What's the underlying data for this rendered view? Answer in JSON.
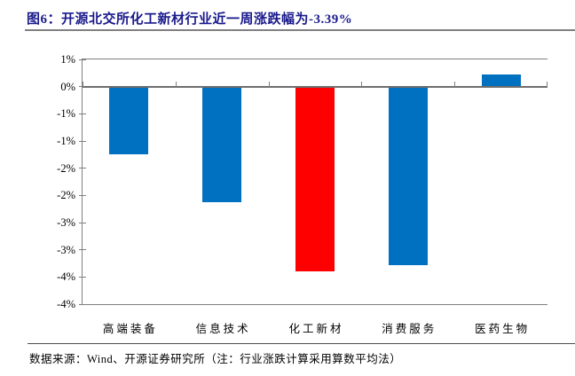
{
  "figure": {
    "title": "图6：开源北交所化工新材行业近一周涨跌幅为-3.39%",
    "source_note": "数据来源：Wind、开源证券研究所（注：行业涨跌计算采用算数平均法）"
  },
  "colors": {
    "title_navy": "#1a1a8c",
    "bar_blue": "#0070C0",
    "bar_red": "#FF0000",
    "axis_gray": "#808080",
    "zero_line_gray": "#6e6e6e"
  },
  "chart_data": {
    "type": "bar",
    "title": "开源北交所化工新材行业近一周涨跌幅为-3.39%",
    "categories": [
      "高端装备",
      "信息技术",
      "化工新材",
      "消费服务",
      "医药生物"
    ],
    "values": [
      -1.25,
      -2.13,
      -3.39,
      -3.28,
      0.23
    ],
    "bar_colors": [
      "#0070C0",
      "#0070C0",
      "#FF0000",
      "#0070C0",
      "#0070C0"
    ],
    "highlight_category": "化工新材",
    "xlabel": "",
    "ylabel": "",
    "ylim": [
      -4.0,
      0.5
    ],
    "ytick_values": [
      0.5,
      0,
      -0.5,
      -1,
      -1.5,
      -2,
      -2.5,
      -3,
      -3.5,
      -4
    ],
    "ytick_labels": [
      "1%",
      "0%",
      "-1%",
      "-1%",
      "-2%",
      "-2%",
      "-3%",
      "-3%",
      "-4%",
      "-4%"
    ],
    "grid": false,
    "legend": null
  }
}
